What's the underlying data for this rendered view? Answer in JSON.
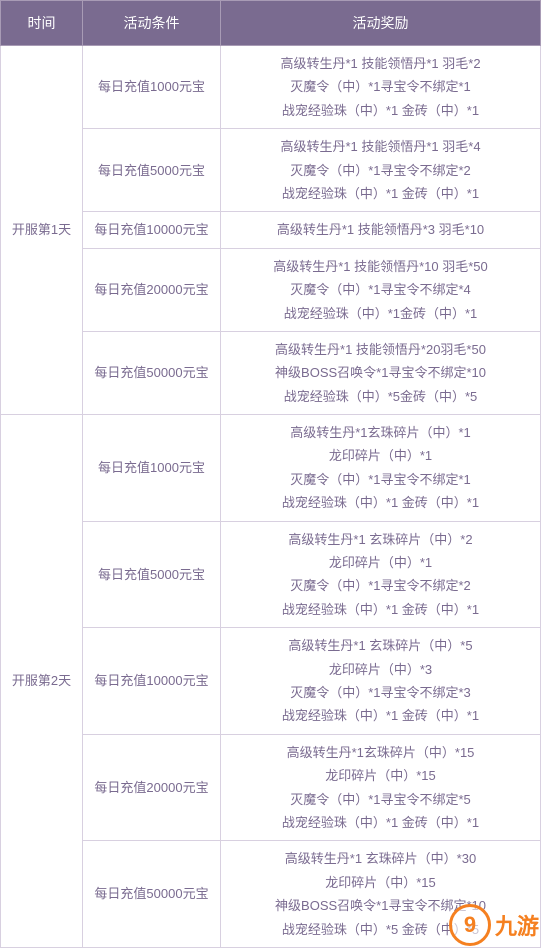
{
  "headers": {
    "time": "时间",
    "condition": "活动条件",
    "reward": "活动奖励"
  },
  "colors": {
    "header_bg": "#7a6b90",
    "header_fg": "#ffffff",
    "cell_fg": "#7a6b90",
    "border": "#d8d0e0",
    "header_border": "#a89bb5",
    "watermark": "#f58020"
  },
  "groups": [
    {
      "time": "开服第1天",
      "rows": [
        {
          "condition": "每日充值1000元宝",
          "rewards": [
            "高级转生丹*1 技能领悟丹*1 羽毛*2",
            "灭魔令（中）*1寻宝令不绑定*1",
            "战宠经验珠（中）*1 金砖（中）*1"
          ]
        },
        {
          "condition": "每日充值5000元宝",
          "rewards": [
            "高级转生丹*1 技能领悟丹*1 羽毛*4",
            "灭魔令（中）*1寻宝令不绑定*2",
            "战宠经验珠（中）*1 金砖（中）*1"
          ]
        },
        {
          "condition": "每日充值10000元宝",
          "rewards": [
            "高级转生丹*1 技能领悟丹*3 羽毛*10"
          ]
        },
        {
          "condition": "每日充值20000元宝",
          "rewards": [
            "高级转生丹*1 技能领悟丹*10 羽毛*50",
            "灭魔令（中）*1寻宝令不绑定*4",
            "战宠经验珠（中）*1金砖（中）*1"
          ]
        },
        {
          "condition": "每日充值50000元宝",
          "rewards": [
            "高级转生丹*1 技能领悟丹*20羽毛*50",
            "神级BOSS召唤令*1寻宝令不绑定*10",
            "战宠经验珠（中）*5金砖（中）*5"
          ]
        }
      ]
    },
    {
      "time": "开服第2天",
      "rows": [
        {
          "condition": "每日充值1000元宝",
          "rewards": [
            "高级转生丹*1玄珠碎片（中）*1",
            "龙印碎片（中）*1",
            "灭魔令（中）*1寻宝令不绑定*1",
            "战宠经验珠（中）*1 金砖（中）*1"
          ]
        },
        {
          "condition": "每日充值5000元宝",
          "rewards": [
            "高级转生丹*1 玄珠碎片（中）*2",
            "龙印碎片（中）*1",
            "灭魔令（中）*1寻宝令不绑定*2",
            "战宠经验珠（中）*1 金砖（中）*1"
          ]
        },
        {
          "condition": "每日充值10000元宝",
          "rewards": [
            "高级转生丹*1 玄珠碎片（中）*5",
            "龙印碎片（中）*3",
            "灭魔令（中）*1寻宝令不绑定*3",
            "战宠经验珠（中）*1 金砖（中）*1"
          ]
        },
        {
          "condition": "每日充值20000元宝",
          "rewards": [
            "高级转生丹*1玄珠碎片（中）*15",
            "龙印碎片（中）*15",
            "灭魔令（中）*1寻宝令不绑定*5",
            "战宠经验珠（中）*1 金砖（中）*1"
          ]
        },
        {
          "condition": "每日充值50000元宝",
          "rewards": [
            "高级转生丹*1 玄珠碎片（中）*30",
            "龙印碎片（中）*15",
            "神级BOSS召唤令*1寻宝令不绑定*10",
            "战宠经验珠（中）*5 金砖（中）*5"
          ]
        }
      ]
    }
  ],
  "watermark": {
    "icon": "9",
    "text": "九游"
  }
}
